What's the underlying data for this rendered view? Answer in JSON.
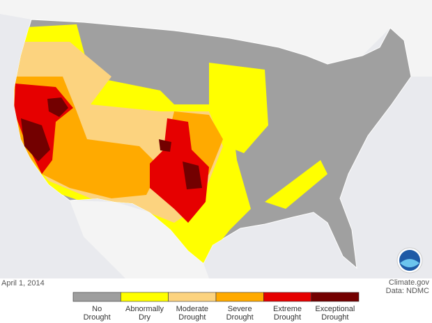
{
  "map": {
    "date": "April 1, 2014",
    "credit": "Climate.gov",
    "source": "Data: NDMC",
    "legend": [
      {
        "lines": [
          "No",
          "Drought"
        ],
        "color": "#9e9e9e"
      },
      {
        "lines": [
          "Abnormally",
          "Dry"
        ],
        "color": "#ffff00"
      },
      {
        "lines": [
          "Moderate",
          "Drought"
        ],
        "color": "#fcd37f"
      },
      {
        "lines": [
          "Severe",
          "Drought"
        ],
        "color": "#ffaa00"
      },
      {
        "lines": [
          "Extreme",
          "Drought"
        ],
        "color": "#e60000"
      },
      {
        "lines": [
          "Exceptional",
          "Drought"
        ],
        "color": "#730000"
      }
    ]
  }
}
